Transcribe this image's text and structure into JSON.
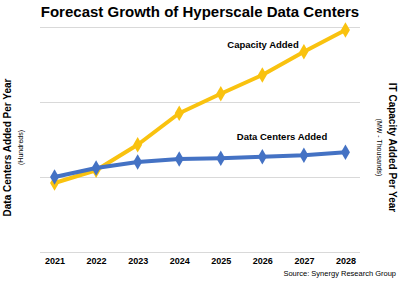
{
  "chart_data": {
    "type": "line",
    "title": "Forecast Growth of Hyperscale Data Centers",
    "y_label": "Data Centers Added Per Year",
    "y_sublabel": "(Hundreds)",
    "y2_label": "IT Capacity Added Per Year",
    "y2_sublabel": "(MW - Thousands)",
    "source": "Source: Synergy Research Group",
    "categories": [
      "2021",
      "2022",
      "2023",
      "2024",
      "2025",
      "2026",
      "2027",
      "2028"
    ],
    "series": [
      {
        "name": "Capacity Added",
        "color": "#f9c20f",
        "marker": "diamond",
        "values": [
          0.92,
          1.09,
          1.43,
          1.85,
          2.11,
          2.36,
          2.67,
          2.96
        ]
      },
      {
        "name": "Data Centers Added",
        "color": "#4472c4",
        "marker": "diamond",
        "values": [
          1.0,
          1.12,
          1.2,
          1.24,
          1.25,
          1.27,
          1.29,
          1.33
        ]
      }
    ],
    "ylim": [
      0,
      3
    ],
    "yticks": [
      0,
      1,
      2,
      3
    ],
    "grid": true,
    "tick_labels": "x"
  }
}
